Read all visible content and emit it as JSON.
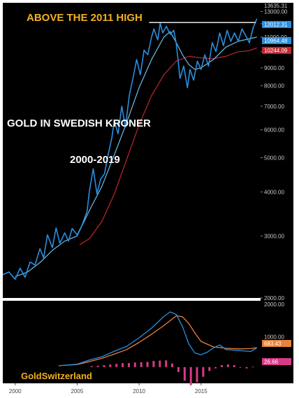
{
  "theme": {
    "background": "#000000",
    "title_color": "#f2b01e",
    "label_color": "#ffffff",
    "price_color": "#2a8fe0",
    "ma_short_color": "#6cbfe8",
    "ma_long_color": "#c2272d",
    "macd_color": "#2a8fe0",
    "signal_color": "#e9823a",
    "histogram_color": "#d83a87"
  },
  "chart_data": [
    {
      "type": "line",
      "title": "ABOVE THE 2011 HIGH",
      "labels": [
        "GOLD IN SWEDISH KRONER",
        "2000-2019"
      ],
      "watermark": "GoldSwitzerland",
      "y_scale": "log",
      "ylim": [
        2000,
        13635.31
      ],
      "yticks": [
        13000,
        12000,
        11000,
        10000,
        9000,
        8000,
        7000,
        6000,
        5000,
        4000,
        3000,
        2000
      ],
      "ytick_labels": [
        "13000.00",
        "12000.00",
        "11000.00",
        "10000.00",
        "9000.00",
        "8000.00",
        "7000.00",
        "6000.00",
        "5000.00",
        "4000.00",
        "3000.00",
        "2000.00"
      ],
      "top_label": "13635.31",
      "xlim": [
        1999,
        2019.8
      ],
      "xticks": [
        2000,
        2005,
        2010,
        2015
      ],
      "series": [
        {
          "role": "price",
          "x": [
            1999.0,
            1999.5,
            2000.0,
            2000.4,
            2000.8,
            2001.2,
            2001.6,
            2002.0,
            2002.3,
            2002.6,
            2003.0,
            2003.3,
            2003.6,
            2004.0,
            2004.3,
            2004.6,
            2005.0,
            2005.4,
            2005.8,
            2006.0,
            2006.3,
            2006.6,
            2006.9,
            2007.2,
            2007.5,
            2007.8,
            2008.0,
            2008.3,
            2008.6,
            2008.9,
            2009.2,
            2009.5,
            2009.8,
            2010.1,
            2010.4,
            2010.7,
            2011.0,
            2011.2,
            2011.5,
            2011.7,
            2011.9,
            2012.2,
            2012.5,
            2012.8,
            2013.0,
            2013.3,
            2013.6,
            2013.9,
            2014.1,
            2014.4,
            2014.7,
            2015.0,
            2015.3,
            2015.6,
            2015.9,
            2016.2,
            2016.5,
            2016.8,
            2017.1,
            2017.4,
            2017.7,
            2018.0,
            2018.3,
            2018.6,
            2018.9,
            2019.2,
            2019.5
          ],
          "y": [
            2330,
            2370,
            2260,
            2430,
            2290,
            2530,
            2480,
            2760,
            2600,
            3020,
            2780,
            3160,
            2860,
            3060,
            2900,
            3150,
            3020,
            3220,
            3520,
            4050,
            4650,
            3950,
            4350,
            4500,
            5100,
            5700,
            6350,
            5850,
            7000,
            6100,
            7500,
            8400,
            9500,
            8600,
            10100,
            9800,
            11000,
            11600,
            10800,
            12050,
            11300,
            11800,
            11200,
            11500,
            10500,
            8400,
            9100,
            7900,
            8900,
            8300,
            9400,
            8900,
            9800,
            9100,
            10600,
            10000,
            11300,
            10400,
            11500,
            10700,
            11300,
            10700,
            11600,
            11100,
            10600,
            11700,
            12400
          ]
        },
        {
          "role": "short-moving-average",
          "x": [
            2000,
            2001,
            2002,
            2003,
            2004,
            2005,
            2006,
            2007,
            2008,
            2009,
            2010,
            2011,
            2012,
            2012.5,
            2013,
            2013.5,
            2014,
            2014.5,
            2015,
            2016,
            2017,
            2018,
            2019,
            2019.5
          ],
          "y": [
            2300,
            2370,
            2520,
            2730,
            2900,
            3000,
            3550,
            4150,
            5100,
            6300,
            7900,
            9500,
            11000,
            11400,
            10600,
            9800,
            9200,
            8900,
            9000,
            9500,
            10300,
            10700,
            10900,
            11000
          ]
        },
        {
          "role": "long-moving-average",
          "x": [
            2005.2,
            2006,
            2007,
            2008,
            2009,
            2010,
            2011,
            2012,
            2013,
            2014,
            2015,
            2016,
            2017,
            2018,
            2018.8,
            2019.5
          ],
          "y": [
            2830,
            2950,
            3300,
            3950,
            4950,
            6200,
            7500,
            8600,
            9400,
            9700,
            9600,
            9550,
            9700,
            10000,
            10050,
            10250
          ]
        }
      ],
      "annotations": [
        {
          "type": "horizontal-line",
          "y": 12100,
          "x_from": 2010.8,
          "x_to": 2019.4
        }
      ],
      "badges": [
        {
          "value": "12012.31",
          "color": "#2a8fe0"
        },
        {
          "value": "10964.48",
          "color": "#2a8fe0"
        },
        {
          "value": "10244.09",
          "color": "#c2272d"
        }
      ]
    },
    {
      "type": "line",
      "ylim": [
        -500,
        2000
      ],
      "yticks": [
        2000,
        1000
      ],
      "ytick_labels": [
        "2000.00",
        "1000.00"
      ],
      "series": [
        {
          "role": "macd",
          "x": [
            2003.5,
            2005,
            2006,
            2007,
            2008,
            2009,
            2010,
            2011,
            2012,
            2012.5,
            2013,
            2013.5,
            2014,
            2014.5,
            2015,
            2015.5,
            2016,
            2016.5,
            2017,
            2018,
            2019,
            2019.5
          ],
          "y": [
            40,
            90,
            220,
            320,
            490,
            640,
            900,
            1200,
            1560,
            1700,
            1620,
            1250,
            720,
            430,
            380,
            460,
            590,
            680,
            540,
            510,
            480,
            590
          ]
        },
        {
          "role": "signal",
          "x": [
            2003.5,
            2005,
            2006,
            2007,
            2008,
            2009,
            2010,
            2011,
            2012,
            2013,
            2013.5,
            2014,
            2014.5,
            2015,
            2016,
            2017,
            2018,
            2019,
            2019.5
          ],
          "y": [
            40,
            80,
            170,
            270,
            400,
            540,
            760,
            1010,
            1280,
            1580,
            1550,
            1350,
            1050,
            790,
            620,
            580,
            560,
            570,
            600
          ]
        },
        {
          "role": "histogram",
          "x": [
            2006.2,
            2006.7,
            2007.2,
            2007.7,
            2008.2,
            2008.7,
            2009.2,
            2009.7,
            2010.2,
            2010.7,
            2011.2,
            2011.7,
            2012.2,
            2012.7,
            2013.2,
            2013.7,
            2014.2,
            2014.7,
            2015.2,
            2015.7,
            2016.2,
            2016.7,
            2017.2,
            2017.7,
            2018.2,
            2018.7,
            2019.2
          ],
          "y": [
            30,
            40,
            60,
            80,
            100,
            120,
            120,
            140,
            150,
            160,
            190,
            200,
            210,
            110,
            -150,
            -420,
            -560,
            -470,
            -300,
            -120,
            -40,
            60,
            80,
            60,
            -20,
            -40,
            10
          ]
        }
      ],
      "badges": [
        {
          "value": "683.43",
          "color": "#e9823a"
        },
        {
          "value": "26.66",
          "color": "#d83a87"
        }
      ]
    }
  ]
}
